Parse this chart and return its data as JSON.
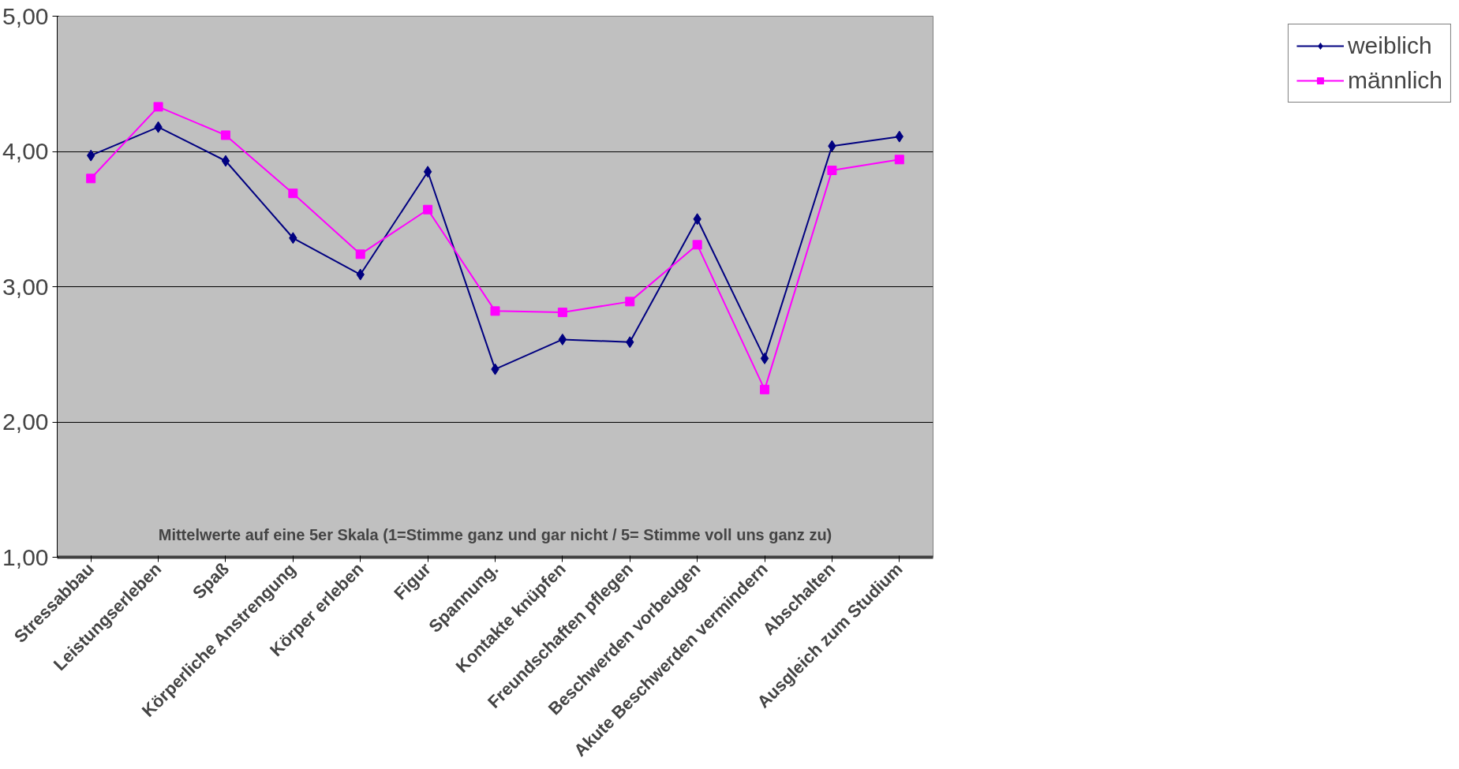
{
  "chart_data": {
    "type": "line",
    "categories": [
      "Stressabbau",
      "Leistungserleben",
      "Spaß",
      "Körperliche Anstrengung",
      "Körper erleben",
      "Figur",
      "Spannung.",
      "Kontakte knüpfen",
      "Freundschaften pflegen",
      "Beschwerden vorbeugen",
      "Akute Beschwerden vermindern",
      "Abschalten",
      "Ausgleich zum Studium"
    ],
    "series": [
      {
        "name": "weiblich",
        "color": "#000080",
        "marker": "diamond",
        "values": [
          3.97,
          4.18,
          3.93,
          3.36,
          3.09,
          3.85,
          2.39,
          2.61,
          2.59,
          3.5,
          2.47,
          4.04,
          4.11
        ]
      },
      {
        "name": "männlich",
        "color": "#ff00ff",
        "marker": "square",
        "values": [
          3.8,
          4.33,
          4.12,
          3.69,
          3.24,
          3.57,
          2.82,
          2.81,
          2.89,
          3.31,
          2.24,
          3.86,
          3.94
        ]
      }
    ],
    "ylim": [
      1,
      5
    ],
    "yticks": [
      {
        "value": 1,
        "label": "1,00"
      },
      {
        "value": 2,
        "label": "2,00"
      },
      {
        "value": 3,
        "label": "3,00"
      },
      {
        "value": 4,
        "label": "4,00"
      },
      {
        "value": 5,
        "label": "5,00"
      }
    ],
    "grid": "y",
    "legend": "right",
    "annotations": [
      "Mittelwerte auf eine 5er Skala (1=Stimme ganz und gar nicht / 5= Stimme voll uns ganz zu)"
    ]
  }
}
